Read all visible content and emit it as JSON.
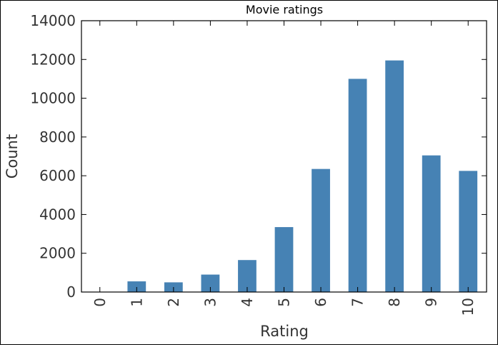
{
  "chart_data": {
    "type": "bar",
    "title": "Movie ratings",
    "xlabel": "Rating",
    "ylabel": "Count",
    "categories": [
      "0",
      "1",
      "2",
      "3",
      "4",
      "5",
      "6",
      "7",
      "8",
      "9",
      "10"
    ],
    "values": [
      0,
      550,
      500,
      900,
      1650,
      3350,
      6350,
      11000,
      11950,
      7050,
      6250
    ],
    "ylim": [
      0,
      14000
    ],
    "yticks": [
      0,
      2000,
      4000,
      6000,
      8000,
      10000,
      12000,
      14000
    ],
    "bar_color": "#4682b4",
    "grid": false,
    "legend": false
  }
}
